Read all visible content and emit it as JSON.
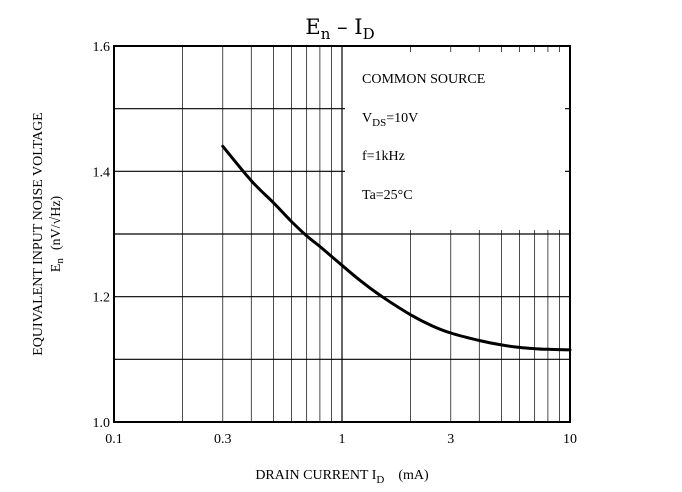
{
  "chart_data": {
    "type": "line",
    "title": {
      "main": "E",
      "main_sub": "n",
      "sep": " – ",
      "right": "I",
      "right_sub": "D"
    },
    "xlabel": {
      "text": "DRAIN CURRENT  I",
      "sub": "D",
      "unit": "(mA)"
    },
    "ylabel": {
      "line1": "EQUIVALENT INPUT NOISE VOLTAGE",
      "line2_sym": "E",
      "line2_sub": "n",
      "line2_unit": "(nV/√Hz)"
    },
    "x_scale": "log",
    "xlim": [
      0.1,
      10
    ],
    "ylim": [
      1.0,
      1.6
    ],
    "x_ticks": [
      {
        "value": 0.1,
        "label": "0.1"
      },
      {
        "value": 0.3,
        "label": "0.3"
      },
      {
        "value": 1,
        "label": "1"
      },
      {
        "value": 3,
        "label": "3"
      },
      {
        "value": 10,
        "label": "10"
      }
    ],
    "y_ticks": [
      {
        "value": 1.0,
        "label": "1.0"
      },
      {
        "value": 1.2,
        "label": "1.2"
      },
      {
        "value": 1.4,
        "label": "1.4"
      },
      {
        "value": 1.6,
        "label": "1.6"
      }
    ],
    "grid": true,
    "annotations": [
      {
        "text": "COMMON SOURCE"
      },
      {
        "text": "V",
        "sub": "DS",
        "after": "=10V"
      },
      {
        "text": "f=1kHz"
      },
      {
        "text": "Ta=25°C"
      }
    ],
    "series": [
      {
        "x": [
          0.3,
          0.4,
          0.5,
          0.6,
          0.7,
          0.8,
          1.0,
          1.2,
          1.5,
          2.0,
          2.5,
          3.0,
          4.0,
          5.0,
          6.0,
          7.0,
          8.0,
          10.0
        ],
        "y": [
          1.44,
          1.385,
          1.35,
          1.32,
          1.297,
          1.28,
          1.25,
          1.226,
          1.2,
          1.171,
          1.153,
          1.142,
          1.13,
          1.123,
          1.119,
          1.117,
          1.116,
          1.115
        ]
      }
    ]
  }
}
